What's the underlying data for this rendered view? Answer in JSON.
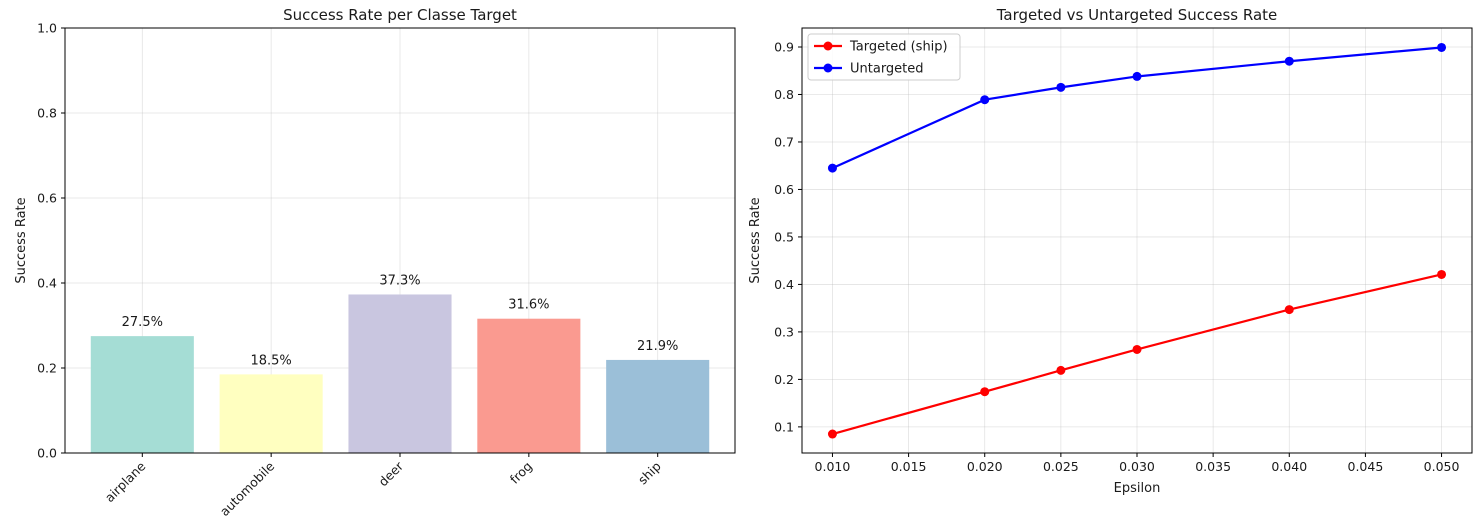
{
  "chart_data": [
    {
      "type": "bar",
      "title": "Success Rate per Classe Target",
      "xlabel": "",
      "ylabel": "Success Rate",
      "ylim": [
        0,
        1.0
      ],
      "yticks": [
        "0.0",
        "0.2",
        "0.4",
        "0.6",
        "0.8",
        "1.0"
      ],
      "grid": true,
      "categories": [
        "airplane",
        "automobile",
        "deer",
        "frog",
        "ship"
      ],
      "values": [
        0.275,
        0.185,
        0.373,
        0.316,
        0.219
      ],
      "value_labels": [
        "27.5%",
        "18.5%",
        "37.3%",
        "31.6%",
        "21.9%"
      ],
      "colors": [
        "#a5ddd5",
        "#ffffc0",
        "#c9c6e0",
        "#fa9a90",
        "#9bbfd8"
      ]
    },
    {
      "type": "line",
      "title": "Targeted vs Untargeted Success Rate",
      "xlabel": "Epsilon",
      "ylabel": "Success Rate",
      "xlim": [
        0.008,
        0.052
      ],
      "ylim": [
        0.045,
        0.94
      ],
      "xticks": [
        "0.010",
        "0.015",
        "0.020",
        "0.025",
        "0.030",
        "0.035",
        "0.040",
        "0.045",
        "0.050"
      ],
      "yticks": [
        "0.1",
        "0.2",
        "0.3",
        "0.4",
        "0.5",
        "0.6",
        "0.7",
        "0.8",
        "0.9"
      ],
      "grid": true,
      "legend_position": "top-left",
      "x": [
        0.01,
        0.02,
        0.025,
        0.03,
        0.04,
        0.05
      ],
      "series": [
        {
          "name": "Targeted (ship)",
          "color": "#ff0000",
          "values": [
            0.085,
            0.174,
            0.219,
            0.263,
            0.347,
            0.421
          ]
        },
        {
          "name": "Untargeted",
          "color": "#0000ff",
          "values": [
            0.645,
            0.789,
            0.815,
            0.838,
            0.87,
            0.899
          ]
        }
      ]
    }
  ]
}
